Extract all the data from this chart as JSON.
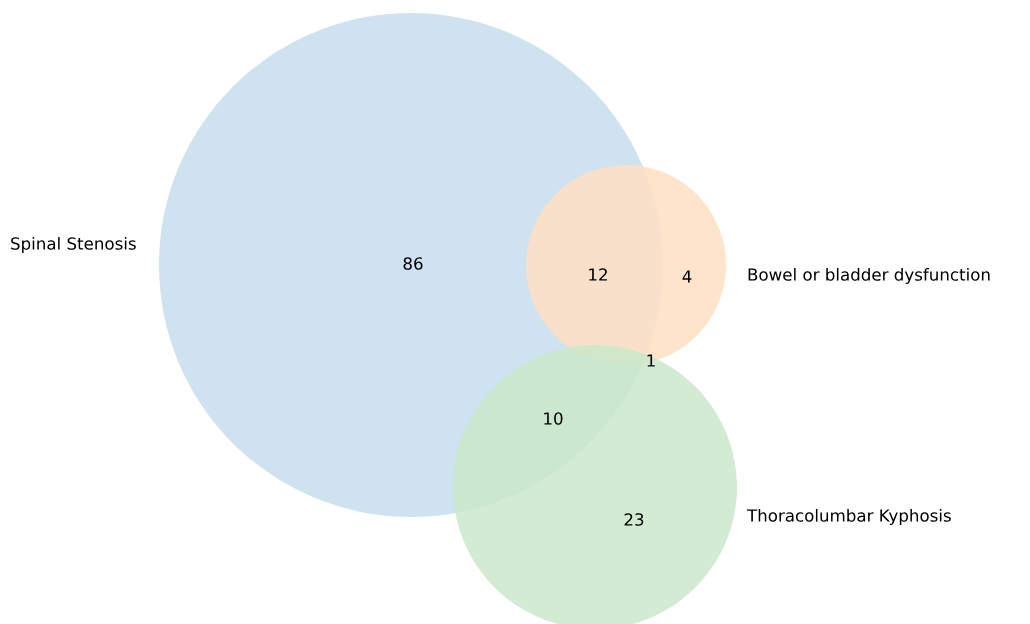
{
  "chart_data": {
    "type": "other",
    "categories": [
      "Spinal Stenosis",
      "Bowel or bladder dysfunction",
      "Thoracolumbar Kyphosis"
    ],
    "colors": [
      "#c7ddec",
      "#ffdfc3",
      "#cae7ca"
    ],
    "values": [
      86,
      4,
      23
    ],
    "data_labels": true,
    "annotations": [
      "12",
      "10",
      "1"
    ]
  }
}
